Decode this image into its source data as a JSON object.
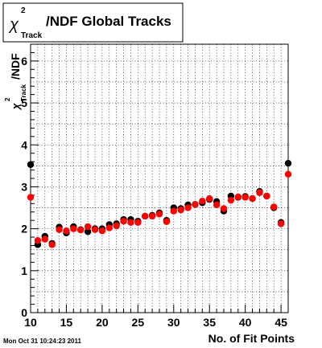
{
  "title": {
    "symbol": "χ",
    "superscript": "2",
    "subscript": "Track",
    "rest": "/NDF  Global Tracks"
  },
  "ylabel": {
    "symbol": "χ",
    "superscript": "2",
    "subscript": "Track",
    "rest": "/NDF"
  },
  "timestamp": "Mon Oct 31 10:24:23 2011",
  "colors": {
    "series_a": "#000000",
    "series_b": "#ff0000"
  },
  "chart_data": {
    "type": "scatter",
    "title": "χ²Track/NDF  Global Tracks",
    "xlabel": "No. of Fit Points",
    "ylabel": "χ²Track/NDF",
    "xlim": [
      10,
      46
    ],
    "ylim": [
      0,
      6.4
    ],
    "x_ticks": [
      10,
      15,
      20,
      25,
      30,
      35,
      40,
      45
    ],
    "x_tick_labels": [
      "10",
      "15",
      "20",
      "25",
      "30",
      "35",
      "40",
      "45"
    ],
    "y_ticks": [
      0,
      1,
      2,
      3,
      4,
      5,
      6
    ],
    "y_tick_labels": [
      "0",
      "1",
      "2",
      "3",
      "4",
      "5",
      "6"
    ],
    "grid": true,
    "legend": "none",
    "series": [
      {
        "color": "#000000",
        "points": [
          [
            10,
            3.53
          ],
          [
            11,
            1.62
          ],
          [
            12,
            1.82
          ],
          [
            13,
            1.65
          ],
          [
            14,
            2.04
          ],
          [
            15,
            1.9
          ],
          [
            16,
            2.05
          ],
          [
            17,
            1.98
          ],
          [
            18,
            1.93
          ],
          [
            19,
            2.0
          ],
          [
            20,
            2.0
          ],
          [
            21,
            2.1
          ],
          [
            22,
            2.12
          ],
          [
            23,
            2.22
          ],
          [
            24,
            2.22
          ],
          [
            25,
            2.18
          ],
          [
            26,
            2.3
          ],
          [
            27,
            2.32
          ],
          [
            28,
            2.38
          ],
          [
            29,
            2.2
          ],
          [
            30,
            2.5
          ],
          [
            31,
            2.48
          ],
          [
            32,
            2.57
          ],
          [
            33,
            2.58
          ],
          [
            34,
            2.62
          ],
          [
            35,
            2.7
          ],
          [
            36,
            2.65
          ],
          [
            37,
            2.42
          ],
          [
            38,
            2.78
          ],
          [
            39,
            2.75
          ],
          [
            40,
            2.77
          ],
          [
            41,
            2.72
          ],
          [
            42,
            2.89
          ],
          [
            43,
            2.78
          ],
          [
            44,
            2.5
          ],
          [
            45,
            2.15
          ],
          [
            46,
            3.56
          ]
        ]
      },
      {
        "color": "#ff0000",
        "points": [
          [
            10,
            2.75
          ],
          [
            11,
            1.72
          ],
          [
            12,
            1.75
          ],
          [
            13,
            1.62
          ],
          [
            14,
            1.98
          ],
          [
            15,
            1.95
          ],
          [
            16,
            2.0
          ],
          [
            17,
            1.97
          ],
          [
            18,
            2.05
          ],
          [
            19,
            1.98
          ],
          [
            20,
            1.95
          ],
          [
            21,
            2.02
          ],
          [
            22,
            2.07
          ],
          [
            23,
            2.18
          ],
          [
            24,
            2.15
          ],
          [
            25,
            2.15
          ],
          [
            26,
            2.3
          ],
          [
            27,
            2.3
          ],
          [
            28,
            2.35
          ],
          [
            29,
            2.17
          ],
          [
            30,
            2.42
          ],
          [
            31,
            2.45
          ],
          [
            32,
            2.5
          ],
          [
            33,
            2.58
          ],
          [
            34,
            2.66
          ],
          [
            35,
            2.72
          ],
          [
            36,
            2.57
          ],
          [
            37,
            2.48
          ],
          [
            38,
            2.68
          ],
          [
            39,
            2.76
          ],
          [
            40,
            2.75
          ],
          [
            41,
            2.72
          ],
          [
            42,
            2.86
          ],
          [
            43,
            2.78
          ],
          [
            44,
            2.52
          ],
          [
            45,
            2.12
          ],
          [
            46,
            3.3
          ]
        ]
      }
    ]
  }
}
